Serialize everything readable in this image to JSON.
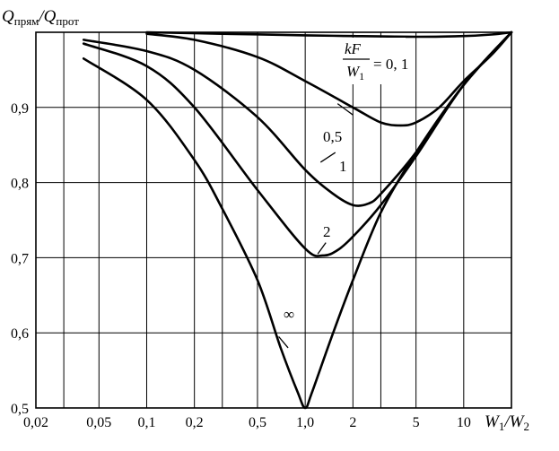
{
  "chart_data": {
    "type": "line",
    "x_scale": "log",
    "xlim": [
      0.02,
      20
    ],
    "ylim": [
      0.5,
      1.0
    ],
    "grid": true,
    "ylabel": {
      "main": "Q",
      "sub1": "прям",
      "slash": "/Q",
      "sub2": "прот"
    },
    "xlabel": {
      "w1": "W",
      "sub1": "1",
      "slash": "/W",
      "sub2": "2"
    },
    "x_ticks": [
      {
        "value": 0.02,
        "label": "0,02"
      },
      {
        "value": 0.05,
        "label": "0,05"
      },
      {
        "value": 0.1,
        "label": "0,1"
      },
      {
        "value": 0.2,
        "label": "0,2"
      },
      {
        "value": 0.5,
        "label": "0,5"
      },
      {
        "value": 1.0,
        "label": "1,0"
      },
      {
        "value": 2,
        "label": "2"
      },
      {
        "value": 5,
        "label": "5"
      },
      {
        "value": 10,
        "label": "10"
      }
    ],
    "y_ticks": [
      {
        "value": 0.9,
        "label": "0,9"
      },
      {
        "value": 0.8,
        "label": "0,8"
      },
      {
        "value": 0.7,
        "label": "0,7"
      },
      {
        "value": 0.6,
        "label": "0,6"
      },
      {
        "value": 0.5,
        "label": "0,5"
      }
    ],
    "x_gridlines": [
      0.03,
      0.05,
      0.1,
      0.2,
      0.3,
      0.5,
      1.0,
      2,
      3,
      5,
      10
    ],
    "y_gridlines": [
      0.6,
      0.7,
      0.8,
      0.9
    ],
    "parameter_label": {
      "numerator": "kF",
      "denominator": "W",
      "den_sub": "1",
      "value": "= 0, 1"
    },
    "series": [
      {
        "label": "0,1",
        "points": [
          [
            0.1,
            1.0
          ],
          [
            0.3,
            0.998
          ],
          [
            1,
            0.996
          ],
          [
            2,
            0.995
          ],
          [
            5,
            0.994
          ],
          [
            10,
            0.995
          ],
          [
            15,
            0.997
          ],
          [
            20,
            1.0
          ]
        ]
      },
      {
        "label": "0,5",
        "points": [
          [
            0.1,
            0.998
          ],
          [
            0.2,
            0.99
          ],
          [
            0.5,
            0.967
          ],
          [
            1,
            0.935
          ],
          [
            2,
            0.9
          ],
          [
            3,
            0.88
          ],
          [
            4,
            0.876
          ],
          [
            5,
            0.88
          ],
          [
            7,
            0.9
          ],
          [
            10,
            0.935
          ],
          [
            15,
            0.97
          ],
          [
            20,
            1.0
          ]
        ]
      },
      {
        "label": "1",
        "points": [
          [
            0.04,
            0.99
          ],
          [
            0.1,
            0.975
          ],
          [
            0.2,
            0.95
          ],
          [
            0.5,
            0.887
          ],
          [
            1,
            0.817
          ],
          [
            1.5,
            0.785
          ],
          [
            2,
            0.77
          ],
          [
            2.5,
            0.772
          ],
          [
            3,
            0.785
          ],
          [
            5,
            0.84
          ],
          [
            10,
            0.93
          ],
          [
            20,
            1.0
          ]
        ]
      },
      {
        "label": "2",
        "points": [
          [
            0.04,
            0.985
          ],
          [
            0.1,
            0.955
          ],
          [
            0.2,
            0.9
          ],
          [
            0.5,
            0.79
          ],
          [
            1,
            0.712
          ],
          [
            1.3,
            0.703
          ],
          [
            1.6,
            0.71
          ],
          [
            2,
            0.728
          ],
          [
            3,
            0.77
          ],
          [
            5,
            0.835
          ],
          [
            10,
            0.93
          ],
          [
            20,
            1.0
          ]
        ]
      },
      {
        "label": "∞",
        "points": [
          [
            0.04,
            0.965
          ],
          [
            0.1,
            0.91
          ],
          [
            0.2,
            0.83
          ],
          [
            0.3,
            0.765
          ],
          [
            0.5,
            0.67
          ],
          [
            0.7,
            0.58
          ],
          [
            0.9,
            0.52
          ],
          [
            1.0,
            0.5
          ],
          [
            1.1,
            0.52
          ],
          [
            1.5,
            0.6
          ],
          [
            2,
            0.67
          ],
          [
            3,
            0.76
          ],
          [
            5,
            0.84
          ],
          [
            10,
            0.93
          ],
          [
            20,
            1.0
          ]
        ]
      }
    ]
  }
}
